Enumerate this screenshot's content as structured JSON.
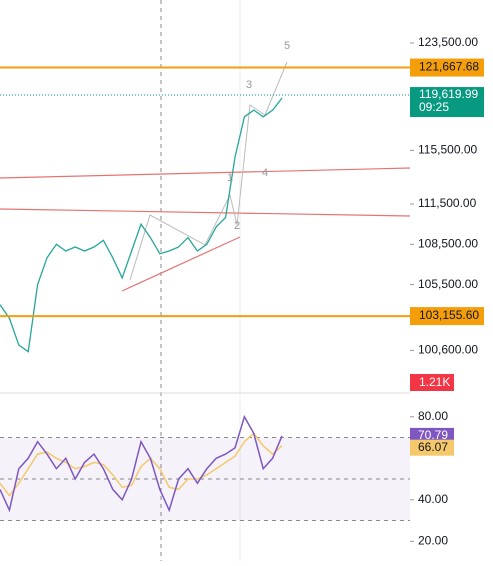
{
  "chart_data": [
    {
      "type": "line",
      "color": "#26a69a",
      "values": [
        104000,
        103000,
        101000,
        100500,
        105500,
        107500,
        108500,
        108000,
        108300,
        108000,
        108300,
        108800,
        107500,
        106000,
        108000,
        110000,
        109000,
        107800,
        108000,
        108300,
        109000,
        108000,
        108500,
        109800,
        110500,
        115000,
        118000,
        118500,
        118000,
        118500,
        119400
      ],
      "ylim": [
        97500,
        126700
      ],
      "yticks": [
        {
          "value": 123500,
          "label": "123,500.00"
        },
        {
          "value": 115500,
          "label": "115,500.00"
        },
        {
          "value": 111500,
          "label": "111,500.00"
        },
        {
          "value": 108500,
          "label": "108,500.00"
        },
        {
          "value": 105500,
          "label": "105,500.00"
        },
        {
          "value": 100600,
          "label": "100,600.00"
        }
      ],
      "levels": [
        {
          "value": 121667.68,
          "label": "121,667.68",
          "color": "#f59e0b"
        },
        {
          "value": 103155.6,
          "label": "103,155.60",
          "color": "#f59e0b"
        }
      ],
      "last": {
        "value": 119619.99,
        "label": "119,619.99",
        "time": "09:25",
        "color": "#089981"
      },
      "volume_label": "1.21K",
      "annotations": [
        "1",
        "2",
        "3",
        "4",
        "5"
      ]
    },
    {
      "type": "line",
      "series": [
        {
          "color": "#7e57c2",
          "values": [
            45,
            35,
            55,
            60,
            68,
            62,
            55,
            60,
            50,
            58,
            62,
            55,
            45,
            40,
            50,
            68,
            60,
            45,
            35,
            50,
            55,
            48,
            55,
            60,
            62,
            65,
            80,
            72,
            55,
            60,
            70.79
          ]
        },
        {
          "color": "#f5c96a",
          "values": [
            48,
            42,
            48,
            55,
            62,
            63,
            60,
            58,
            55,
            56,
            58,
            57,
            52,
            46,
            47,
            56,
            60,
            55,
            46,
            45,
            50,
            50,
            52,
            55,
            58,
            61,
            68,
            72,
            66,
            62,
            66.07
          ]
        }
      ],
      "ylim": [
        10.5,
        90.5
      ],
      "yticks": [
        {
          "value": 80,
          "label": "80.00"
        },
        {
          "value": 40,
          "label": "40.00"
        },
        {
          "value": 20,
          "label": "20.00"
        }
      ],
      "levels": [
        70,
        50,
        30
      ]
    }
  ]
}
